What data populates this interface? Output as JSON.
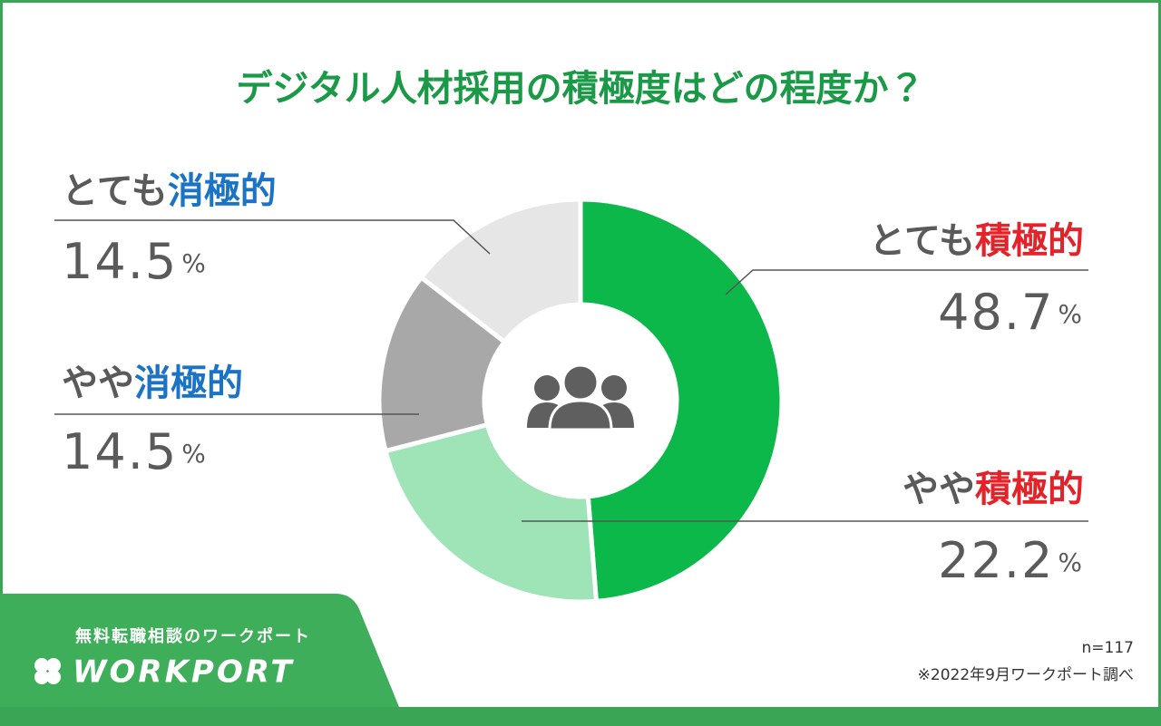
{
  "chart_data": {
    "type": "donut",
    "title": "デジタル人材採用の積極度はどの程度か？",
    "categories": [
      {
        "prefix": "とても",
        "emphasis": "積極的"
      },
      {
        "prefix": "やや",
        "emphasis": "積極的"
      },
      {
        "prefix": "やや",
        "emphasis": "消極的"
      },
      {
        "prefix": "とても",
        "emphasis": "消極的"
      }
    ],
    "values": [
      48.7,
      22.2,
      14.5,
      14.5
    ],
    "unit": "%",
    "colors": [
      "#0cb84a",
      "#9ee4b6",
      "#a8a8a8",
      "#e6e6e6"
    ],
    "emphasis_colors": [
      "#e3222a",
      "#e3222a",
      "#1a73c4",
      "#1a73c4"
    ],
    "sample": "n=117",
    "source": "※2022年9月ワークポート調べ"
  },
  "brand": {
    "tagline": "無料転職相談のワークポート",
    "logo": "WORKPORT"
  }
}
